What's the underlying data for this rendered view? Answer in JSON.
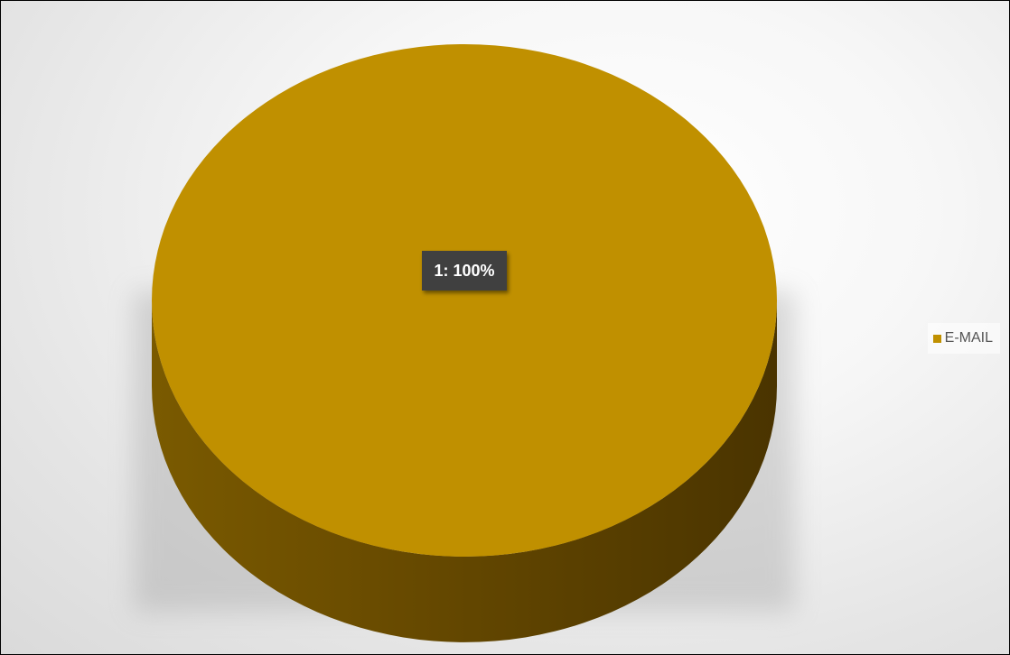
{
  "chart_data": {
    "type": "pie",
    "style": "3d",
    "categories": [
      "E-MAIL"
    ],
    "values": [
      1
    ],
    "data_labels": [
      "1: 100%"
    ],
    "colors": [
      "#C09000"
    ],
    "legend_position": "right",
    "title": ""
  }
}
